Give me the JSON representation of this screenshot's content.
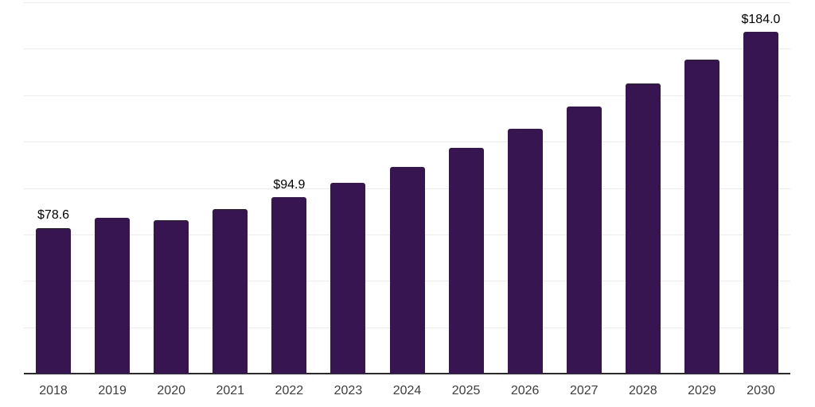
{
  "chart_data": {
    "type": "bar",
    "title": "",
    "xlabel": "",
    "ylabel": "",
    "categories": [
      "2018",
      "2019",
      "2020",
      "2021",
      "2022",
      "2023",
      "2024",
      "2025",
      "2026",
      "2027",
      "2028",
      "2029",
      "2030"
    ],
    "values": [
      78.6,
      83.9,
      82.7,
      88.6,
      94.9,
      102.7,
      111.5,
      121.6,
      131.9,
      144.0,
      156.4,
      169.4,
      184.0
    ],
    "data_labels": {
      "2018": "$78.6",
      "2022": "$94.9",
      "2030": "$184.0"
    },
    "ylim": [
      0,
      200
    ],
    "gridline_step": 25,
    "grid": true,
    "legend": false,
    "y_axis_tick_labels_visible": false,
    "colors": {
      "bar": "#371550",
      "gridline": "#ececec",
      "axis_line": "#2b2b2b",
      "x_tick_label": "#3d3d3d",
      "data_label": "#000000",
      "background": "#ffffff"
    }
  }
}
